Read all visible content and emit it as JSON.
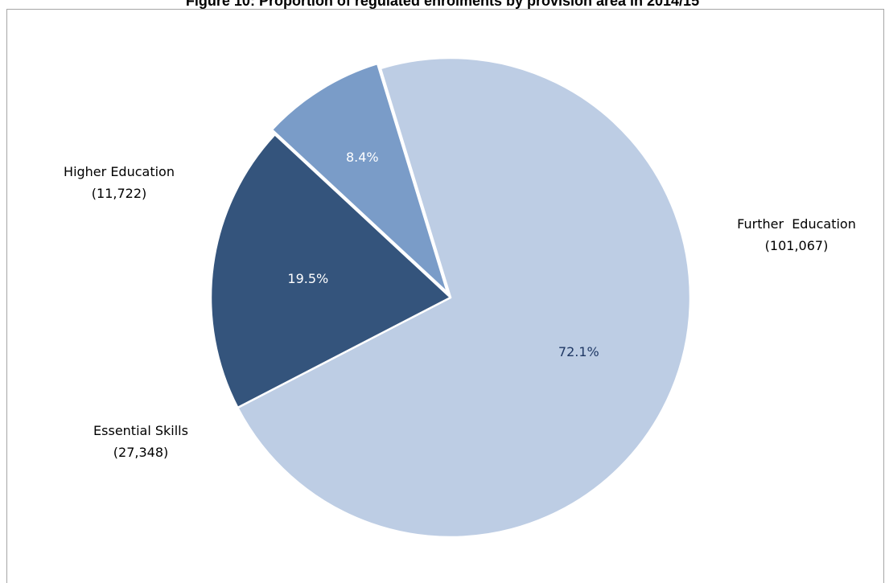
{
  "chart_data": {
    "type": "pie",
    "title": "Figure 10: Proportion of regulated enrolments by provision area in 2014/15",
    "slices": [
      {
        "name": "Further  Education",
        "value": 101067,
        "percent_label": "72.1%",
        "count_label": "(101,067)",
        "color": "#bdcde4",
        "text_color": "#1f3864"
      },
      {
        "name": "Essential Skills",
        "value": 27348,
        "percent_label": "19.5%",
        "count_label": "(27,348)",
        "color": "#34547c",
        "text_color": "#ffffff"
      },
      {
        "name": "Higher Education",
        "value": 11722,
        "percent_label": "8.4%",
        "count_label": "(11,722)",
        "color": "#7a9cc8",
        "text_color": "#ffffff"
      }
    ],
    "legend": "none",
    "explode": "Higher Education"
  }
}
